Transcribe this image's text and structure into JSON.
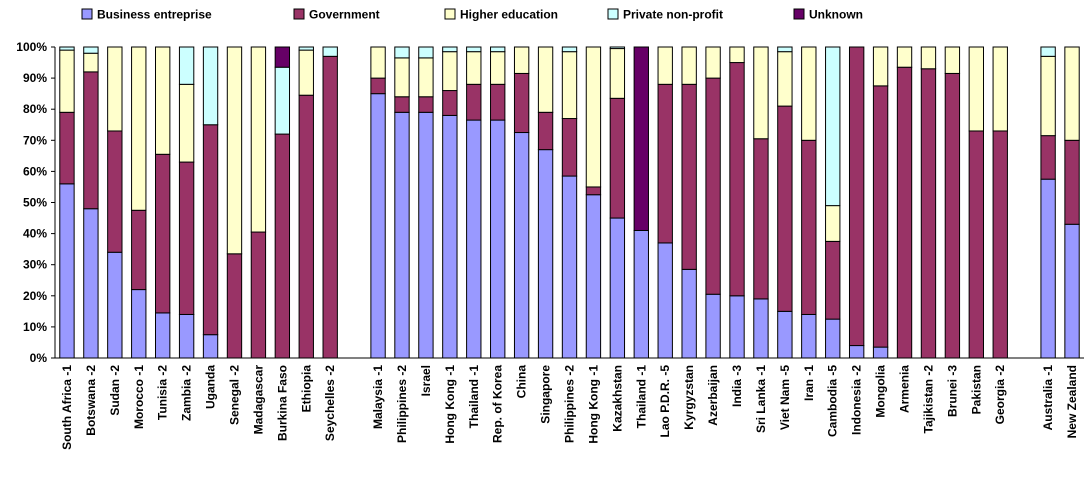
{
  "chart_data": {
    "type": "bar",
    "stacked": true,
    "ylim": [
      0,
      100
    ],
    "yticks": [
      "0%",
      "10%",
      "20%",
      "30%",
      "40%",
      "50%",
      "60%",
      "70%",
      "80%",
      "90%",
      "100%"
    ],
    "grid": false,
    "legend_position": "top",
    "series": [
      {
        "name": "Business entreprise",
        "color": "#9999ff"
      },
      {
        "name": "Government",
        "color": "#993366"
      },
      {
        "name": "Higher education",
        "color": "#ffffcc"
      },
      {
        "name": "Private non-profit",
        "color": "#ccffff"
      },
      {
        "name": "Unknown",
        "color": "#660066"
      }
    ],
    "categories": [
      "South Africa -1",
      "Botswana -2",
      "Sudan -2",
      "Morocco -1",
      "Tunisia -2",
      "Zambia -2",
      "Uganda",
      "Senegal -2",
      "Madagascar",
      "Burkina Faso",
      "Ethiopia",
      "Seychelles -2",
      "",
      "Malaysia -1",
      "Philippines -2",
      "Israel",
      "Hong Kong -1",
      "Thailand -1",
      "Rep. of Korea",
      "China",
      "Singapore",
      "Philippines -2",
      "Hong Kong -1",
      "Kazakhstan",
      "Thailand -1",
      "Lao P.D.R. -5",
      "Kyrgyzstan",
      "Azerbaijan",
      "India -3",
      "Sri Lanka -1",
      "Viet Nam -5",
      "Iran -1",
      "Cambodia -5",
      "Indonesia -2",
      "Mongolia",
      "Armenia",
      "Tajikistan -2",
      "Brunei -3",
      "Pakistan",
      "Georgia -2",
      "",
      "Australia -1",
      "New Zealand"
    ],
    "values": [
      [
        56,
        23,
        20,
        1,
        0
      ],
      [
        48,
        44,
        6,
        2,
        0
      ],
      [
        34,
        39,
        27,
        0,
        0
      ],
      [
        22,
        25.5,
        52.5,
        0,
        0
      ],
      [
        14.5,
        51,
        34.5,
        0,
        0
      ],
      [
        14,
        49,
        25,
        12,
        0
      ],
      [
        7.5,
        67.5,
        0,
        25,
        0
      ],
      [
        0,
        33.5,
        66.5,
        0,
        0
      ],
      [
        0,
        40.5,
        59.5,
        0,
        0
      ],
      [
        0,
        72,
        0,
        21.5,
        6.5
      ],
      [
        0,
        84.5,
        14.5,
        1,
        0
      ],
      [
        0,
        97,
        0,
        3,
        0
      ],
      null,
      [
        85,
        5,
        10,
        0,
        0
      ],
      [
        79,
        5,
        12.5,
        3.5,
        0
      ],
      [
        79,
        5,
        12.5,
        3.5,
        0
      ],
      [
        78,
        8,
        12.5,
        1.5,
        0
      ],
      [
        76.5,
        11.5,
        10.5,
        1.5,
        0
      ],
      [
        76.5,
        11.5,
        10.5,
        1.5,
        0
      ],
      [
        72.5,
        19,
        8.5,
        0,
        0
      ],
      [
        67,
        12,
        21,
        0,
        0
      ],
      [
        58.5,
        18.5,
        21.5,
        1.5,
        0
      ],
      [
        52.5,
        2.5,
        45,
        0,
        0
      ],
      [
        45,
        38.5,
        16,
        0.5,
        0
      ],
      [
        41,
        0,
        0,
        0,
        59
      ],
      [
        37,
        51,
        12,
        0,
        0
      ],
      [
        28.5,
        59.5,
        12,
        0,
        0
      ],
      [
        20.5,
        69.5,
        10,
        0,
        0
      ],
      [
        20,
        75,
        5,
        0,
        0
      ],
      [
        19,
        51.5,
        29.5,
        0,
        0
      ],
      [
        15,
        66,
        17.5,
        1.5,
        0
      ],
      [
        14,
        56,
        30,
        0,
        0
      ],
      [
        12.5,
        25,
        11.5,
        51,
        0
      ],
      [
        4,
        96,
        0,
        0,
        0
      ],
      [
        3.5,
        84,
        12.5,
        0,
        0
      ],
      [
        0,
        93.5,
        6.5,
        0,
        0
      ],
      [
        0,
        93,
        7,
        0,
        0
      ],
      [
        0,
        91.5,
        8.5,
        0,
        0
      ],
      [
        0,
        73,
        27,
        0,
        0
      ],
      [
        0,
        73,
        27,
        0,
        0
      ],
      null,
      [
        57.5,
        14,
        25.5,
        3,
        0
      ],
      [
        43,
        27,
        30,
        0,
        0
      ]
    ]
  }
}
